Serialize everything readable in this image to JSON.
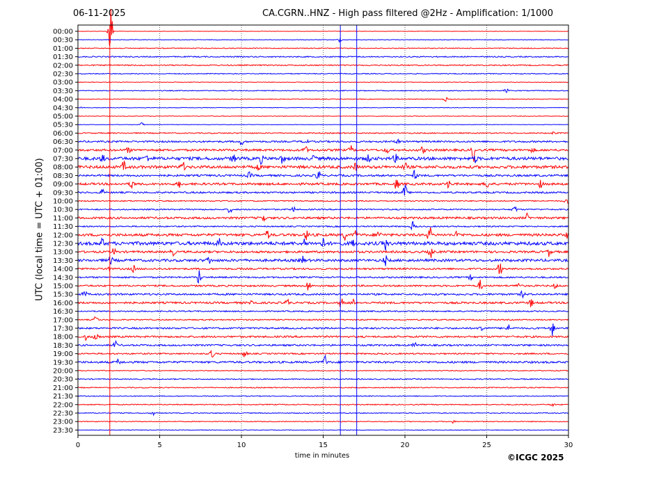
{
  "header": {
    "date": "06-11-2025",
    "title": "CA.CGRN..HNZ - High pass filtered @2Hz - Amplification: 1/1000"
  },
  "footer": {
    "copyright": "©ICGC 2025"
  },
  "colors": {
    "trace_a": "#ff0000",
    "trace_b": "#0000ff",
    "axis": "#000000",
    "grid": "#000000"
  },
  "chart_data": {
    "type": "line",
    "title": "CA.CGRN..HNZ - High pass filtered @2Hz - Amplification: 1/1000",
    "xlabel": "time in minutes",
    "ylabel": "UTC (local time = UTC + 01:00)",
    "xlim": [
      0,
      30
    ],
    "x_ticks": [
      0,
      5,
      10,
      15,
      20,
      25,
      30
    ],
    "grid": "vertical dotted lines at 5, 10, 15, 20, 25",
    "series_colors": [
      "red",
      "blue"
    ],
    "row_labels": [
      "00:00",
      "00:30",
      "01:00",
      "01:30",
      "02:00",
      "02:30",
      "03:00",
      "03:30",
      "04:00",
      "04:30",
      "05:00",
      "05:30",
      "06:00",
      "06:30",
      "07:00",
      "07:30",
      "08:00",
      "08:30",
      "09:00",
      "09:30",
      "10:00",
      "10:30",
      "11:00",
      "11:30",
      "12:00",
      "12:30",
      "13:00",
      "13:30",
      "14:00",
      "14:30",
      "15:00",
      "15:30",
      "16:00",
      "16:30",
      "17:00",
      "17:30",
      "18:00",
      "18:30",
      "19:00",
      "19:30",
      "20:00",
      "20:30",
      "21:00",
      "21:30",
      "22:00",
      "22:30",
      "23:00",
      "23:30"
    ],
    "rows": [
      {
        "label": "00:00",
        "noise": 0.3,
        "events": [
          [
            1.9,
            4
          ],
          [
            2.0,
            40
          ]
        ]
      },
      {
        "label": "00:30",
        "noise": 0.4,
        "events": [
          [
            16.0,
            3
          ]
        ]
      },
      {
        "label": "01:00",
        "noise": 0.6,
        "events": []
      },
      {
        "label": "01:30",
        "noise": 0.8,
        "events": []
      },
      {
        "label": "02:00",
        "noise": 0.8,
        "events": []
      },
      {
        "label": "02:30",
        "noise": 0.6,
        "events": []
      },
      {
        "label": "03:00",
        "noise": 0.4,
        "events": []
      },
      {
        "label": "03:30",
        "noise": 0.6,
        "events": [
          [
            26.2,
            3
          ]
        ]
      },
      {
        "label": "04:00",
        "noise": 0.5,
        "events": [
          [
            22.5,
            3
          ]
        ]
      },
      {
        "label": "04:30",
        "noise": 0.4,
        "events": [
          [
            0.3,
            2
          ]
        ]
      },
      {
        "label": "05:00",
        "noise": 0.4,
        "events": []
      },
      {
        "label": "05:30",
        "noise": 0.3,
        "events": [
          [
            3.9,
            3
          ]
        ]
      },
      {
        "label": "06:00",
        "noise": 0.8,
        "events": [
          [
            29.1,
            2
          ]
        ]
      },
      {
        "label": "06:30",
        "noise": 1.2,
        "events": [
          [
            10.0,
            5
          ],
          [
            13.9,
            8
          ],
          [
            19.5,
            5
          ]
        ]
      },
      {
        "label": "07:00",
        "noise": 1.5,
        "events": [
          [
            3.1,
            4
          ],
          [
            13.9,
            6
          ],
          [
            16.7,
            6
          ],
          [
            18.9,
            5
          ],
          [
            21.1,
            5
          ],
          [
            24.2,
            16
          ],
          [
            27.8,
            3
          ]
        ]
      },
      {
        "label": "07:30",
        "noise": 2.2,
        "events": [
          [
            1.5,
            5
          ],
          [
            4.2,
            5
          ],
          [
            9.5,
            6
          ],
          [
            11.2,
            6
          ],
          [
            12.5,
            6
          ],
          [
            14.4,
            5
          ],
          [
            17.8,
            5
          ],
          [
            19.4,
            6
          ],
          [
            24.3,
            5
          ]
        ]
      },
      {
        "label": "08:00",
        "noise": 2.0,
        "events": [
          [
            2.8,
            7
          ],
          [
            6.4,
            8
          ],
          [
            11.0,
            5
          ],
          [
            17.0,
            6
          ],
          [
            20.0,
            6
          ]
        ]
      },
      {
        "label": "08:30",
        "noise": 1.4,
        "events": [
          [
            10.5,
            5
          ],
          [
            14.7,
            10
          ],
          [
            20.6,
            7
          ]
        ]
      },
      {
        "label": "09:00",
        "noise": 1.6,
        "events": [
          [
            3.3,
            7
          ],
          [
            6.2,
            5
          ],
          [
            19.5,
            9
          ],
          [
            22.7,
            7
          ],
          [
            25.0,
            7
          ],
          [
            28.3,
            5
          ]
        ]
      },
      {
        "label": "09:30",
        "noise": 1.2,
        "events": [
          [
            1.5,
            4
          ],
          [
            20.0,
            12
          ]
        ]
      },
      {
        "label": "10:00",
        "noise": 0.8,
        "events": [
          [
            29.9,
            8
          ]
        ]
      },
      {
        "label": "10:30",
        "noise": 0.9,
        "events": [
          [
            9.3,
            6
          ],
          [
            13.2,
            4
          ],
          [
            26.7,
            6
          ]
        ]
      },
      {
        "label": "11:00",
        "noise": 1.5,
        "events": [
          [
            11.3,
            10
          ],
          [
            27.5,
            6
          ]
        ]
      },
      {
        "label": "11:30",
        "noise": 0.9,
        "events": [
          [
            20.5,
            8
          ]
        ]
      },
      {
        "label": "12:00",
        "noise": 1.8,
        "events": [
          [
            11.6,
            7
          ],
          [
            14.0,
            7
          ],
          [
            16.3,
            7
          ],
          [
            17.0,
            6
          ],
          [
            18.4,
            6
          ],
          [
            21.5,
            12
          ],
          [
            23.2,
            5
          ],
          [
            30.0,
            7
          ]
        ]
      },
      {
        "label": "12:30",
        "noise": 2.4,
        "events": [
          [
            1.5,
            6
          ],
          [
            8.6,
            7
          ],
          [
            13.9,
            6
          ],
          [
            15.0,
            6
          ],
          [
            16.8,
            5
          ],
          [
            18.8,
            9
          ]
        ]
      },
      {
        "label": "13:00",
        "noise": 1.5,
        "events": [
          [
            2.2,
            5
          ],
          [
            5.8,
            6
          ],
          [
            21.6,
            9
          ],
          [
            28.8,
            6
          ]
        ]
      },
      {
        "label": "13:30",
        "noise": 1.8,
        "events": [
          [
            2.0,
            6
          ],
          [
            8.0,
            6
          ],
          [
            13.7,
            7
          ],
          [
            18.8,
            7
          ]
        ]
      },
      {
        "label": "14:00",
        "noise": 1.2,
        "events": [
          [
            1.8,
            6
          ],
          [
            3.4,
            5
          ],
          [
            25.8,
            10
          ]
        ]
      },
      {
        "label": "14:30",
        "noise": 1.1,
        "events": [
          [
            7.4,
            12
          ],
          [
            24.0,
            4
          ]
        ]
      },
      {
        "label": "15:00",
        "noise": 1.2,
        "events": [
          [
            14.1,
            9
          ],
          [
            24.6,
            8
          ],
          [
            26.9,
            6
          ],
          [
            29.2,
            4
          ]
        ]
      },
      {
        "label": "15:30",
        "noise": 1.3,
        "events": [
          [
            0.4,
            6
          ],
          [
            27.2,
            5
          ]
        ]
      },
      {
        "label": "16:00",
        "noise": 1.4,
        "events": [
          [
            10.7,
            10
          ],
          [
            12.8,
            5
          ],
          [
            16.1,
            7
          ],
          [
            16.8,
            5
          ],
          [
            27.7,
            6
          ]
        ]
      },
      {
        "label": "16:30",
        "noise": 0.9,
        "events": []
      },
      {
        "label": "17:00",
        "noise": 0.8,
        "events": [
          [
            1.1,
            6
          ]
        ]
      },
      {
        "label": "17:30",
        "noise": 1.2,
        "events": [
          [
            24.7,
            7
          ],
          [
            26.3,
            6
          ],
          [
            29.0,
            12
          ]
        ]
      },
      {
        "label": "18:00",
        "noise": 1.3,
        "events": [
          [
            0.5,
            5
          ],
          [
            1.1,
            10
          ]
        ]
      },
      {
        "label": "18:30",
        "noise": 1.2,
        "events": [
          [
            2.3,
            5
          ],
          [
            20.6,
            4
          ]
        ]
      },
      {
        "label": "19:00",
        "noise": 1.0,
        "events": [
          [
            8.2,
            10
          ],
          [
            10.2,
            6
          ]
        ]
      },
      {
        "label": "19:30",
        "noise": 1.4,
        "events": [
          [
            2.5,
            5
          ],
          [
            15.1,
            10
          ]
        ]
      },
      {
        "label": "20:00",
        "noise": 0.6,
        "events": []
      },
      {
        "label": "20:30",
        "noise": 0.7,
        "events": []
      },
      {
        "label": "21:00",
        "noise": 0.7,
        "events": []
      },
      {
        "label": "21:30",
        "noise": 0.6,
        "events": []
      },
      {
        "label": "22:00",
        "noise": 0.7,
        "events": [
          [
            29.0,
            3
          ]
        ]
      },
      {
        "label": "22:30",
        "noise": 0.6,
        "events": [
          [
            4.6,
            3
          ]
        ]
      },
      {
        "label": "23:00",
        "noise": 0.6,
        "events": [
          [
            22.9,
            3
          ]
        ]
      },
      {
        "label": "23:30",
        "noise": 0.4,
        "events": []
      }
    ],
    "vertical_markers": [
      {
        "x": 1.95,
        "color": "red"
      },
      {
        "x": 16.05,
        "color": "blue"
      },
      {
        "x": 17.05,
        "color": "blue"
      }
    ]
  }
}
